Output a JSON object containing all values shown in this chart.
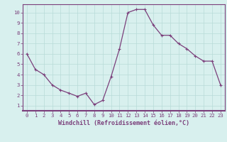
{
  "x": [
    0,
    1,
    2,
    3,
    4,
    5,
    6,
    7,
    8,
    9,
    10,
    11,
    12,
    13,
    14,
    15,
    16,
    17,
    18,
    19,
    20,
    21,
    22,
    23
  ],
  "y": [
    6.0,
    4.5,
    4.0,
    3.0,
    2.5,
    2.2,
    1.9,
    2.2,
    1.1,
    1.5,
    3.8,
    6.5,
    10.0,
    10.3,
    10.3,
    8.8,
    7.8,
    7.8,
    7.0,
    6.5,
    5.8,
    5.3,
    5.3,
    3.0
  ],
  "line_color": "#7b3f7b",
  "marker": "+",
  "marker_color": "#7b3f7b",
  "xlabel": "Windchill (Refroidissement éolien,°C)",
  "background_color": "#d8f0ee",
  "grid_color": "#b8dbd8",
  "tick_color": "#7b3f7b",
  "label_color": "#7b3f7b",
  "xlim": [
    -0.5,
    23.5
  ],
  "ylim": [
    0.5,
    10.8
  ],
  "yticks": [
    1,
    2,
    3,
    4,
    5,
    6,
    7,
    8,
    9,
    10
  ],
  "xticks": [
    0,
    1,
    2,
    3,
    4,
    5,
    6,
    7,
    8,
    9,
    10,
    11,
    12,
    13,
    14,
    15,
    16,
    17,
    18,
    19,
    20,
    21,
    22,
    23
  ],
  "spine_color": "#7b3f7b",
  "xlabel_fontsize": 6.0,
  "tick_fontsize": 5.2,
  "linewidth": 0.9,
  "markersize": 3.5,
  "markeredgewidth": 0.8
}
